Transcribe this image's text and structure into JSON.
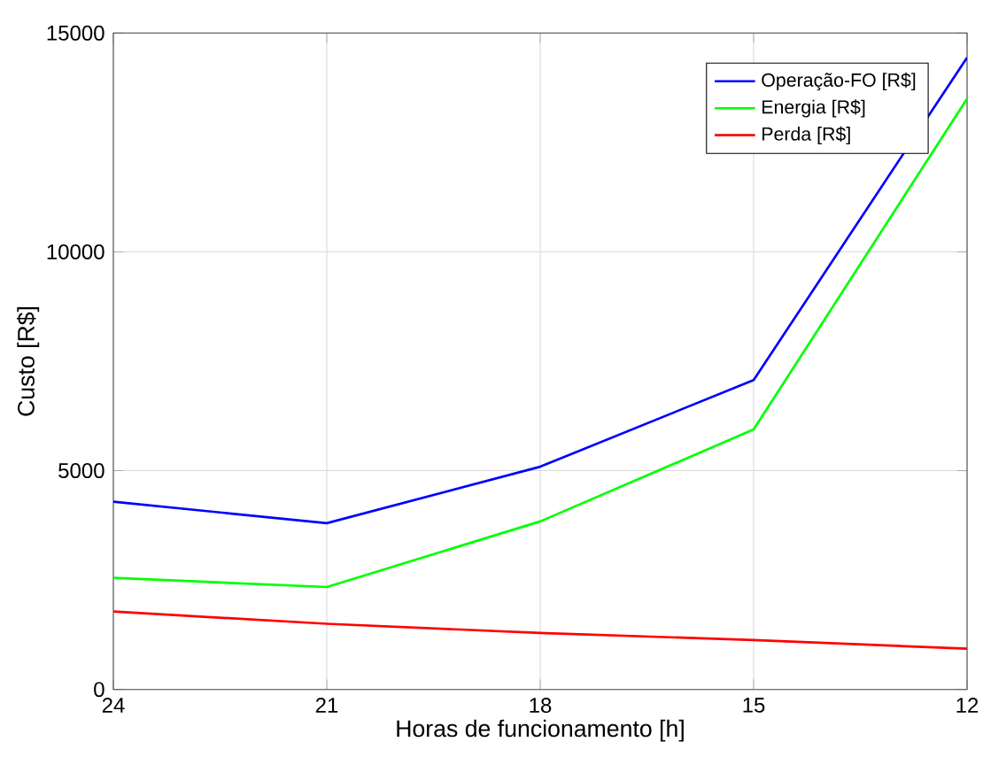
{
  "chart_data": {
    "type": "line",
    "xlabel": "Horas de funcionamento [h]",
    "ylabel": "Custo [R$]",
    "x": [
      24,
      21,
      18,
      15,
      12
    ],
    "series": [
      {
        "name": "Operação-FO [R$]",
        "color": "#0000ff",
        "values": [
          4290,
          3800,
          5090,
          7070,
          14440
        ]
      },
      {
        "name": "Energia [R$]",
        "color": "#00ff00",
        "values": [
          2550,
          2340,
          3840,
          5940,
          13500
        ]
      },
      {
        "name": "Perda [R$]",
        "color": "#ff0000",
        "values": [
          1780,
          1500,
          1290,
          1130,
          930
        ]
      }
    ],
    "xlim": [
      24,
      12
    ],
    "ylim": [
      0,
      15000
    ],
    "xticks": [
      24,
      21,
      18,
      15,
      12
    ],
    "yticks": [
      0,
      5000,
      10000,
      15000
    ],
    "grid": true,
    "legend": "top right"
  }
}
